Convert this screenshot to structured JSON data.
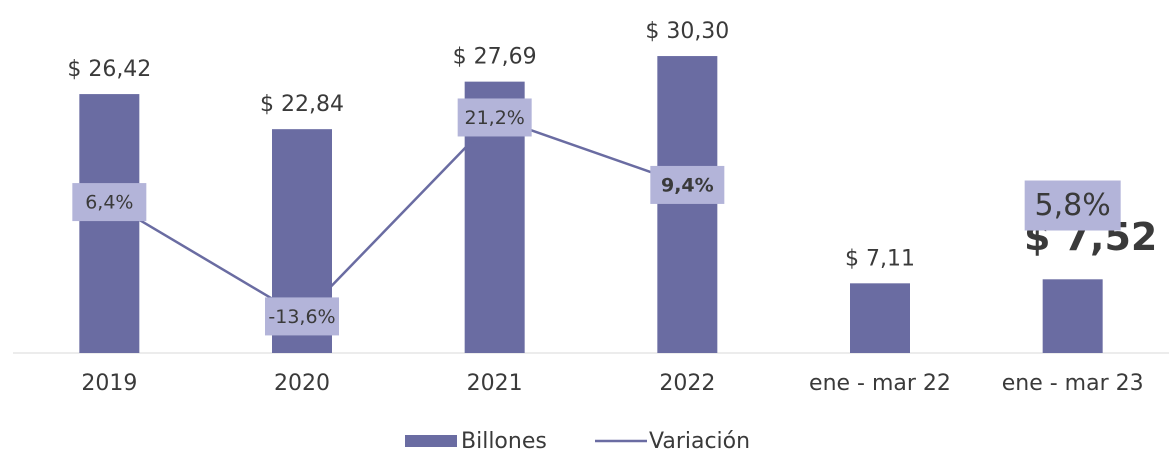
{
  "chart_data": {
    "type": "bar",
    "categories": [
      "2019",
      "2020",
      "2021",
      "2022",
      "ene - mar 22",
      "ene - mar 23"
    ],
    "series": [
      {
        "name": "Billones",
        "type": "bar",
        "color": "#6a6ca2",
        "values": [
          26.42,
          22.84,
          27.69,
          30.3,
          7.11,
          7.52
        ],
        "value_labels": [
          "$ 26,42",
          "$ 22,84",
          "$ 27,69",
          "$ 30,30",
          "$ 7,11",
          "$ 7,52"
        ]
      },
      {
        "name": "Variación",
        "type": "line",
        "axis": "y2",
        "color": "#6a6ca2",
        "values": [
          6.4,
          -13.6,
          21.2,
          9.4,
          null,
          5.8
        ],
        "value_labels": [
          "6,4%",
          "-13,6%",
          "21,2%",
          "9,4%",
          null,
          "5,8%"
        ]
      }
    ],
    "ylim": [
      0,
      35
    ],
    "y2lim": [
      -20,
      40
    ],
    "legend": "bottom"
  }
}
